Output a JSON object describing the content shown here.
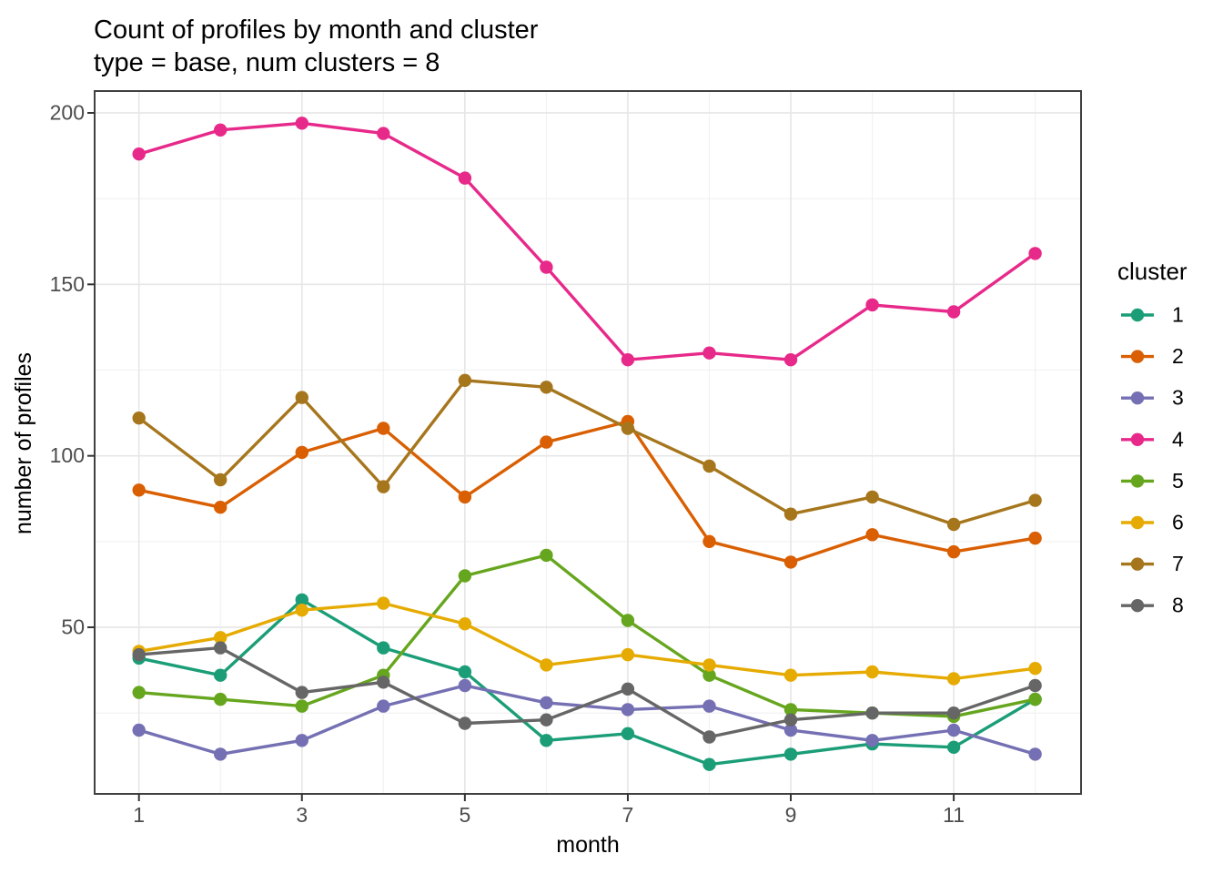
{
  "figure": {
    "title": "Count of profiles by month and cluster",
    "subtitle": "type = base, num clusters = 8"
  },
  "chart_data": {
    "type": "line",
    "title": "Count of profiles by month and cluster",
    "subtitle": "type = base, num clusters = 8",
    "xlabel": "month",
    "ylabel": "number of profiles",
    "legend_title": "cluster",
    "legend_position": "right",
    "grid": true,
    "x": [
      1,
      2,
      3,
      4,
      5,
      6,
      7,
      8,
      9,
      10,
      11,
      12
    ],
    "x_ticks": [
      1,
      3,
      5,
      7,
      9,
      11
    ],
    "x_minor_ticks": [
      2,
      4,
      6,
      8,
      10,
      12
    ],
    "y_ticks": [
      50,
      100,
      150,
      200
    ],
    "y_minor_ticks": [
      25,
      75,
      125,
      175
    ],
    "xlim": [
      0.45,
      12.55
    ],
    "ylim": [
      2,
      206
    ],
    "series": [
      {
        "name": "1",
        "color": "#1B9E77",
        "values": [
          41,
          36,
          58,
          44,
          37,
          17,
          19,
          10,
          13,
          16,
          15,
          29
        ]
      },
      {
        "name": "2",
        "color": "#D95F02",
        "values": [
          90,
          85,
          101,
          108,
          88,
          104,
          110,
          75,
          69,
          77,
          72,
          76
        ]
      },
      {
        "name": "3",
        "color": "#7570B3",
        "values": [
          20,
          13,
          17,
          27,
          33,
          28,
          26,
          27,
          20,
          17,
          20,
          13
        ]
      },
      {
        "name": "4",
        "color": "#E7298A",
        "values": [
          188,
          195,
          197,
          194,
          181,
          155,
          128,
          130,
          128,
          144,
          142,
          159
        ]
      },
      {
        "name": "5",
        "color": "#66A61E",
        "values": [
          31,
          29,
          27,
          36,
          65,
          71,
          52,
          36,
          26,
          25,
          24,
          29
        ]
      },
      {
        "name": "6",
        "color": "#E6AB02",
        "values": [
          43,
          47,
          55,
          57,
          51,
          39,
          42,
          39,
          36,
          37,
          35,
          38
        ]
      },
      {
        "name": "7",
        "color": "#A6761D",
        "values": [
          111,
          93,
          117,
          91,
          122,
          120,
          108,
          97,
          83,
          88,
          80,
          87
        ]
      },
      {
        "name": "8",
        "color": "#666666",
        "values": [
          42,
          44,
          31,
          34,
          22,
          23,
          32,
          18,
          23,
          25,
          25,
          33
        ]
      }
    ],
    "theme": {
      "panel_background": "#ffffff",
      "panel_border": "#404040",
      "grid_major": "#e7e7e7",
      "grid_minor": "#f1f1f1",
      "tick_mark_color": "#333333",
      "tick_label_color": "#4d4d4d",
      "text_color": "#000000"
    }
  }
}
